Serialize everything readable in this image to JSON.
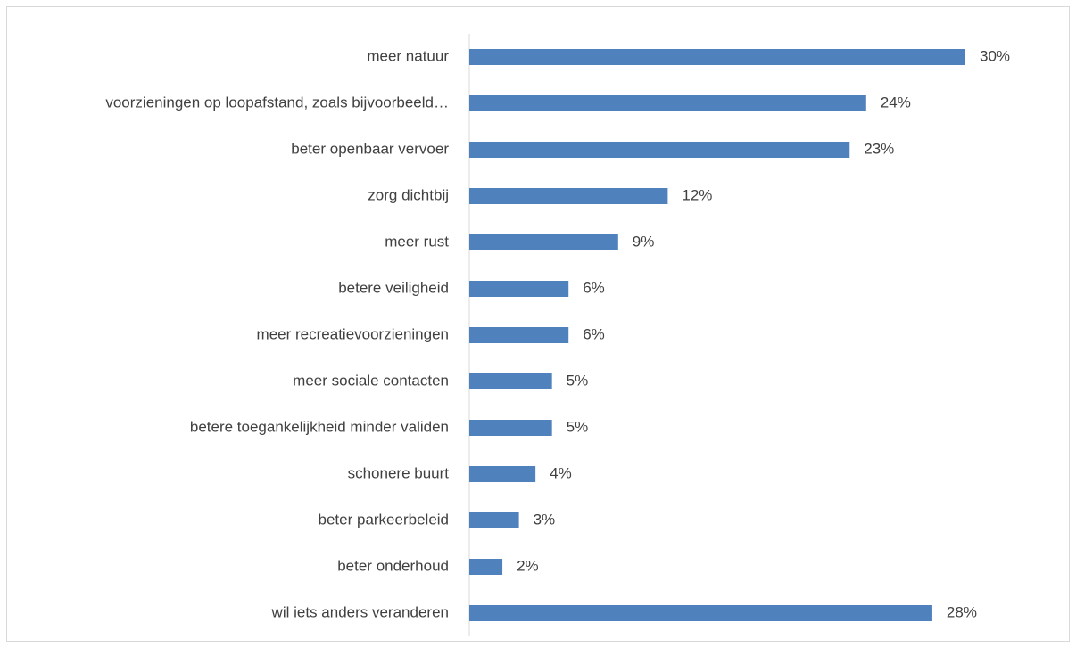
{
  "chart_data": {
    "type": "bar",
    "orientation": "horizontal",
    "categories": [
      "meer natuur",
      "voorzieningen op loopafstand, zoals bijvoorbeeld…",
      "beter openbaar vervoer",
      "zorg dichtbij",
      "meer rust",
      "betere veiligheid",
      "meer recreatievoorzieningen",
      "meer sociale contacten",
      "betere toegankelijkheid minder validen",
      "schonere buurt",
      "beter parkeerbeleid",
      "beter onderhoud",
      "wil iets anders veranderen"
    ],
    "values": [
      30,
      24,
      23,
      12,
      9,
      6,
      6,
      5,
      5,
      4,
      3,
      2,
      28
    ],
    "value_labels": [
      "30%",
      "24%",
      "23%",
      "12%",
      "9%",
      "6%",
      "6%",
      "5%",
      "5%",
      "4%",
      "3%",
      "2%",
      "28%"
    ],
    "color": "#4f81bd",
    "xlim": [
      0,
      30
    ]
  }
}
